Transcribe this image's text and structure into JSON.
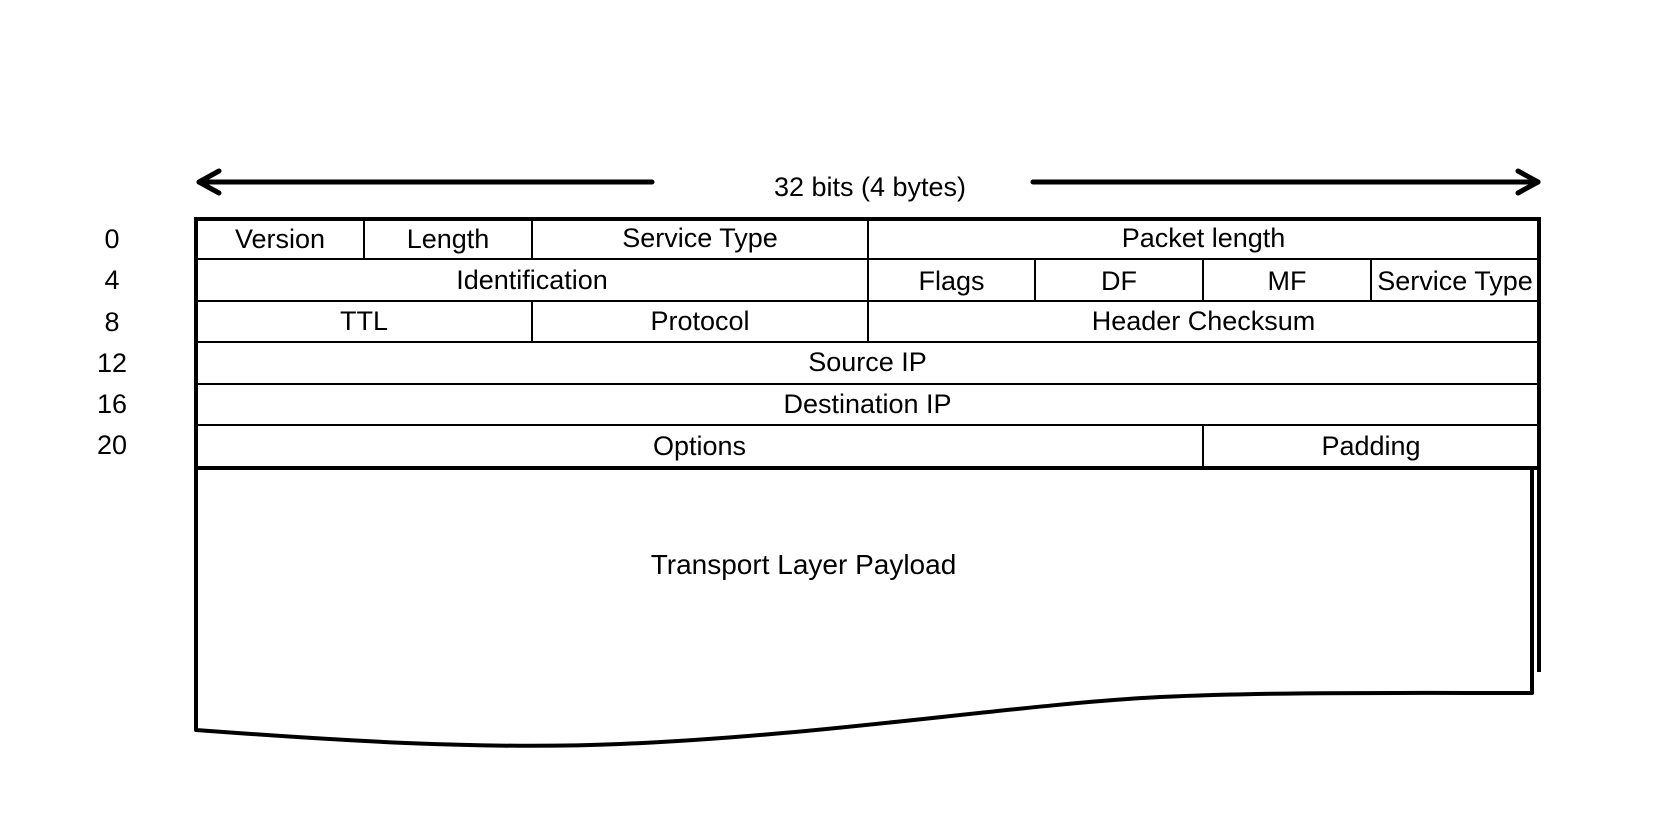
{
  "diagram": {
    "width_label": "32 bits (4 bytes)",
    "row_offsets": [
      "0",
      "4",
      "8",
      "12",
      "16",
      "20"
    ],
    "rows": [
      {
        "fields": [
          "Version",
          "Length",
          "Service Type",
          "Packet length"
        ]
      },
      {
        "fields": [
          "Identification",
          "Flags",
          "DF",
          "MF",
          "Service Type"
        ]
      },
      {
        "fields": [
          "TTL",
          "Protocol",
          "Header Checksum"
        ]
      },
      {
        "fields": [
          "Source IP"
        ]
      },
      {
        "fields": [
          "Destination IP"
        ]
      },
      {
        "fields": [
          "Options",
          "Padding"
        ]
      }
    ],
    "payload_label": "Transport Layer Payload"
  }
}
